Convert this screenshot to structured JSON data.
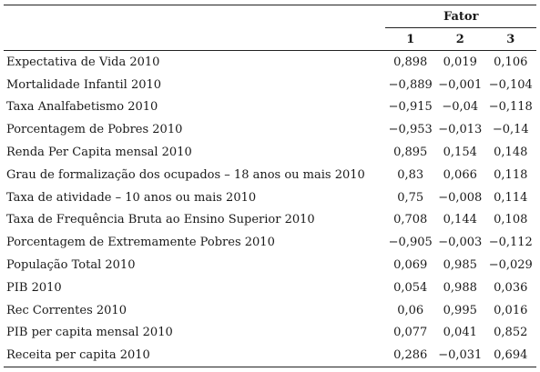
{
  "table": {
    "group_header": "Fator",
    "factor_columns": [
      "1",
      "2",
      "3"
    ],
    "rows": [
      {
        "label": "Expectativa de Vida 2010",
        "values": [
          "0,898",
          "0,019",
          "0,106"
        ]
      },
      {
        "label": "Mortalidade Infantil 2010",
        "values": [
          "−0,889",
          "−0,001",
          "−0,104"
        ]
      },
      {
        "label": "Taxa Analfabetismo 2010",
        "values": [
          "−0,915",
          "−0,04",
          "−0,118"
        ]
      },
      {
        "label": "Porcentagem de Pobres 2010",
        "values": [
          "−0,953",
          "−0,013",
          "−0,14"
        ]
      },
      {
        "label": "Renda Per Capita mensal 2010",
        "values": [
          "0,895",
          "0,154",
          "0,148"
        ]
      },
      {
        "label": "Grau de formalização dos ocupados – 18 anos ou mais 2010",
        "values": [
          "0,83",
          "0,066",
          "0,118"
        ]
      },
      {
        "label": "Taxa de atividade – 10 anos ou mais 2010",
        "values": [
          "0,75",
          "−0,008",
          "0,114"
        ]
      },
      {
        "label": "Taxa de Frequência Bruta ao Ensino Superior 2010",
        "values": [
          "0,708",
          "0,144",
          "0,108"
        ]
      },
      {
        "label": "Porcentagem de Extremamente Pobres 2010",
        "values": [
          "−0,905",
          "−0,003",
          "−0,112"
        ]
      },
      {
        "label": "População Total 2010",
        "values": [
          "0,069",
          "0,985",
          "−0,029"
        ]
      },
      {
        "label": "PIB 2010",
        "values": [
          "0,054",
          "0,988",
          "0,036"
        ]
      },
      {
        "label": "Rec Correntes 2010",
        "values": [
          "0,06",
          "0,995",
          "0,016"
        ]
      },
      {
        "label": "PIB per capita mensal 2010",
        "values": [
          "0,077",
          "0,041",
          "0,852"
        ]
      },
      {
        "label": "Receita per capita 2010",
        "values": [
          "0,286",
          "−0,031",
          "0,694"
        ]
      }
    ]
  }
}
